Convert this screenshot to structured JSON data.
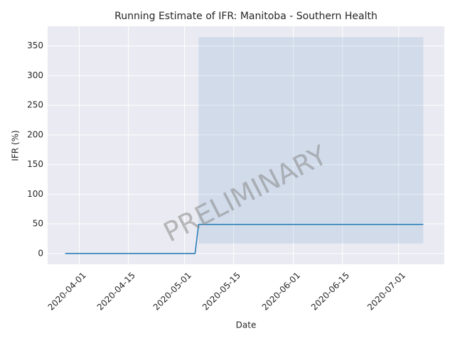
{
  "chart_data": {
    "type": "line",
    "title": "Running Estimate of IFR: Manitoba - Southern Health",
    "xlabel": "Date",
    "ylabel": "IFR (%)",
    "watermark": "PRELIMINARY",
    "series": [
      {
        "name": "IFR",
        "color": "#1f77b4",
        "x": [
          "2020-03-28",
          "2020-05-04",
          "2020-05-05",
          "2020-07-08"
        ],
        "values": [
          0,
          0,
          49,
          49
        ]
      }
    ],
    "band": {
      "color": "#1f77b4",
      "x": [
        "2020-05-05",
        "2020-07-08"
      ],
      "lower": [
        17,
        17
      ],
      "upper": [
        365,
        365
      ]
    },
    "xlim": [
      "2020-03-23",
      "2020-07-14"
    ],
    "xticks": [
      "2020-04-01",
      "2020-04-15",
      "2020-05-01",
      "2020-05-15",
      "2020-06-01",
      "2020-06-15",
      "2020-07-01"
    ],
    "ylim": [
      -18.25,
      383.25
    ],
    "yticks": [
      0,
      50,
      100,
      150,
      200,
      250,
      300,
      350
    ],
    "grid": true
  }
}
